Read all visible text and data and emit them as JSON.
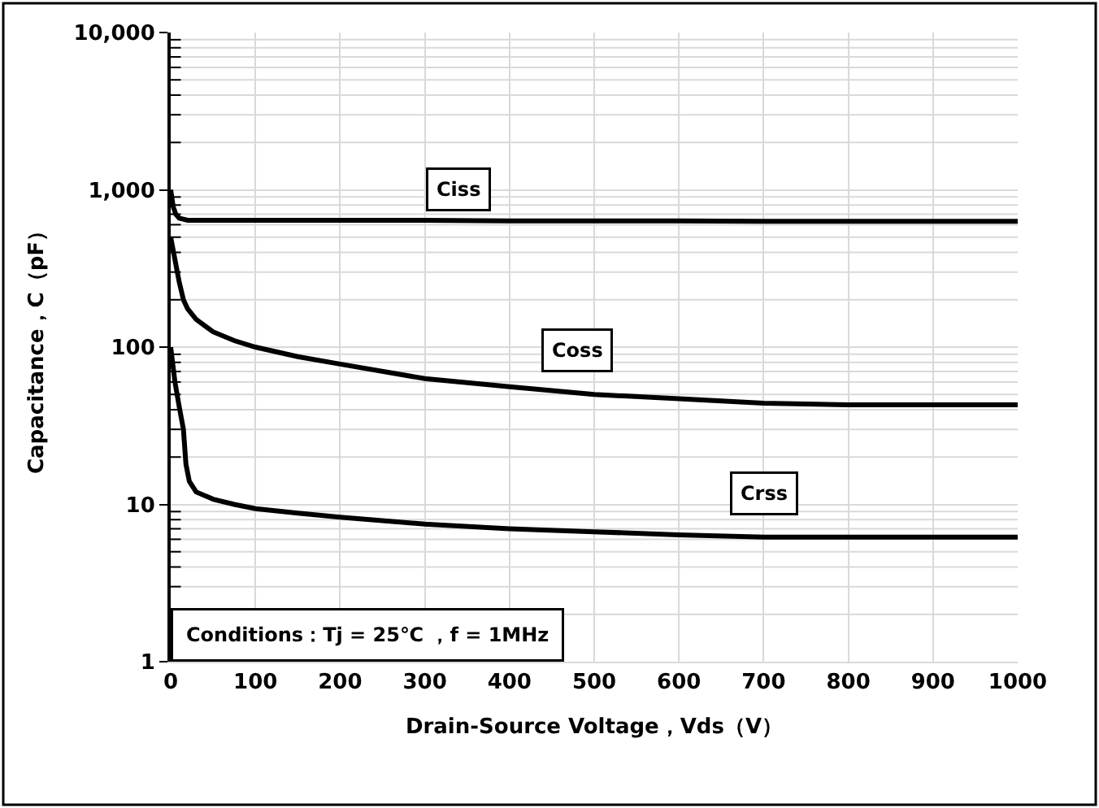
{
  "chart_data": {
    "type": "line",
    "xlabel": "Drain-Source Voltage，Vds（V）",
    "ylabel": "Capacitance，C（pF）",
    "log": "y",
    "grid": true,
    "legend": false,
    "marker": "none",
    "line_style": "solid",
    "xlim": [
      0,
      1000
    ],
    "xticks": [
      0,
      100,
      200,
      300,
      400,
      500,
      600,
      700,
      800,
      900,
      1000
    ],
    "ylim": [
      1,
      10000
    ],
    "yticks": [
      1,
      10,
      100,
      {
        "value": 1000,
        "label": "1,000"
      },
      {
        "value": 10000,
        "label": "10,000"
      }
    ],
    "series": [
      {
        "color": "#000000",
        "x": [
          0,
          3,
          6,
          10,
          20,
          50,
          100,
          200,
          300,
          400,
          500,
          600,
          700,
          800,
          900,
          1000
        ],
        "values": [
          1000,
          780,
          700,
          660,
          640,
          640,
          640,
          640,
          640,
          635,
          635,
          635,
          630,
          630,
          630,
          630
        ]
      },
      {
        "color": "#000000",
        "x": [
          0,
          5,
          10,
          15,
          20,
          30,
          50,
          75,
          100,
          150,
          200,
          300,
          400,
          500,
          600,
          700,
          800,
          900,
          1000
        ],
        "values": [
          500,
          360,
          260,
          200,
          175,
          150,
          125,
          110,
          100,
          87,
          78,
          63,
          56,
          50,
          47,
          44,
          43,
          43,
          43
        ]
      },
      {
        "color": "#000000",
        "x": [
          0,
          5,
          10,
          15,
          18,
          22,
          30,
          50,
          75,
          100,
          150,
          200,
          300,
          400,
          500,
          600,
          700,
          800,
          900,
          1000
        ],
        "values": [
          100,
          60,
          42,
          30,
          18,
          14,
          12,
          10.8,
          10,
          9.4,
          8.8,
          8.3,
          7.5,
          7,
          6.7,
          6.4,
          6.2,
          6.2,
          6.2,
          6.2
        ]
      }
    ],
    "annotations": [
      {
        "text": "Ciss",
        "x": 340,
        "y": 1000
      },
      {
        "text": "Coss",
        "x": 480,
        "y": 96
      },
      {
        "text": "Crss",
        "x": 700,
        "y": 11.8
      },
      "Conditions：Tj = 25℃ ，f = 1MHz"
    ]
  }
}
